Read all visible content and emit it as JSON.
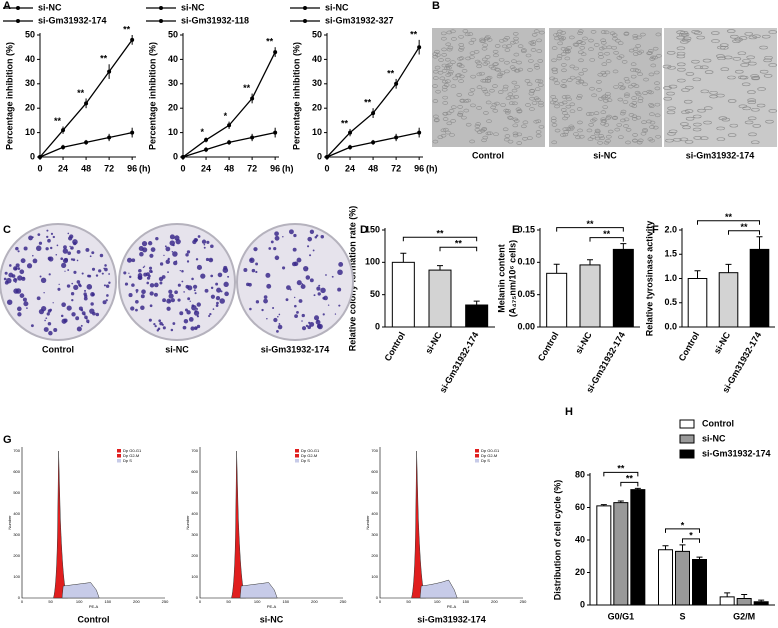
{
  "panel_labels": [
    "A",
    "B",
    "C",
    "D",
    "E",
    "F",
    "G",
    "H"
  ],
  "chart_data": [
    {
      "type": "line",
      "x": [
        0,
        24,
        48,
        72,
        96
      ],
      "xlim": [
        0,
        100
      ],
      "xticks": [
        0,
        24,
        48,
        72,
        96
      ],
      "xlabel": "(h)",
      "ylim": [
        0,
        50
      ],
      "yticks": [
        0,
        10,
        20,
        30,
        40,
        50
      ],
      "ylabel": "Percentage inhibition (%)",
      "series": [
        {
          "name": "si-NC",
          "color": "#000000",
          "values": [
            0,
            4,
            6,
            8,
            10
          ],
          "errors": [
            0,
            1,
            1,
            1.5,
            2
          ]
        },
        {
          "name": "si-Gm31932-174",
          "color": "#000000",
          "values": [
            0,
            11,
            22,
            35,
            48
          ],
          "errors": [
            0,
            1.5,
            2,
            3,
            2
          ]
        }
      ],
      "annotations": [
        null,
        "**",
        "**",
        "**",
        "**"
      ]
    },
    {
      "type": "line",
      "x": [
        0,
        24,
        48,
        72,
        96
      ],
      "xlim": [
        0,
        100
      ],
      "xticks": [
        0,
        24,
        48,
        72,
        96
      ],
      "xlabel": "(h)",
      "ylim": [
        0,
        50
      ],
      "yticks": [
        0,
        10,
        20,
        30,
        40,
        50
      ],
      "ylabel": "Percentage inhibition (%)",
      "series": [
        {
          "name": "si-NC",
          "color": "#000000",
          "values": [
            0,
            3,
            6,
            8,
            10
          ],
          "errors": [
            0,
            1,
            1,
            1.5,
            2
          ]
        },
        {
          "name": "si-Gm31932-118",
          "color": "#000000",
          "values": [
            0,
            7,
            13,
            24,
            43
          ],
          "errors": [
            0,
            1,
            1.5,
            2,
            2
          ]
        }
      ],
      "annotations": [
        null,
        "*",
        "*",
        "**",
        "**"
      ]
    },
    {
      "type": "line",
      "x": [
        0,
        24,
        48,
        72,
        96
      ],
      "xlim": [
        0,
        100
      ],
      "xticks": [
        0,
        24,
        48,
        72,
        96
      ],
      "xlabel": "(h)",
      "ylim": [
        0,
        50
      ],
      "yticks": [
        0,
        10,
        20,
        30,
        40,
        50
      ],
      "ylabel": "Percentage inhibition (%)",
      "series": [
        {
          "name": "si-NC",
          "color": "#000000",
          "values": [
            0,
            4,
            6,
            8,
            10
          ],
          "errors": [
            0,
            1,
            1,
            1.5,
            2
          ]
        },
        {
          "name": "si-Gm31932-327",
          "color": "#000000",
          "values": [
            0,
            10,
            18,
            30,
            45
          ],
          "errors": [
            0,
            1.5,
            2,
            2,
            3
          ]
        }
      ],
      "annotations": [
        null,
        "**",
        "**",
        "**",
        "**"
      ]
    },
    {
      "type": "bar",
      "categories": [
        "Control",
        "si-NC",
        "si-Gm31932-174"
      ],
      "values": [
        100,
        88,
        34
      ],
      "errors": [
        14,
        7,
        6
      ],
      "colors": [
        "#ffffff",
        "#d3d3d3",
        "#000000"
      ],
      "ylim": [
        0,
        150
      ],
      "yticks": [
        0,
        50,
        100,
        150
      ],
      "ylabel": "Relative colony formation rate (%)",
      "brackets": [
        {
          "pair": [
            0,
            2
          ],
          "label": "**"
        },
        {
          "pair": [
            1,
            2
          ],
          "label": "**"
        }
      ]
    },
    {
      "type": "bar",
      "categories": [
        "Control",
        "si-NC",
        "si-Gm31932-174"
      ],
      "values": [
        0.083,
        0.096,
        0.12
      ],
      "errors": [
        0.014,
        0.008,
        0.009
      ],
      "colors": [
        "#ffffff",
        "#d3d3d3",
        "#000000"
      ],
      "ylim": [
        0,
        0.15
      ],
      "yticks": [
        {
          "value": 0,
          "label": "0.00"
        },
        {
          "value": 0.05,
          "label": "0.05"
        },
        {
          "value": 0.1,
          "label": "0.10"
        },
        {
          "value": 0.15,
          "label": "0.15"
        }
      ],
      "ylabel": "Melanin content",
      "ylabel2": "(A₄₇₅nm/10⁶ cells)",
      "brackets": [
        {
          "pair": [
            0,
            2
          ],
          "label": "**"
        },
        {
          "pair": [
            1,
            2
          ],
          "label": "**"
        }
      ]
    },
    {
      "type": "bar",
      "categories": [
        "Control",
        "si-NC",
        "si-Gm31932-174"
      ],
      "values": [
        1.0,
        1.12,
        1.6
      ],
      "errors": [
        0.16,
        0.17,
        0.26
      ],
      "colors": [
        "#ffffff",
        "#d3d3d3",
        "#000000"
      ],
      "ylim": [
        0,
        2
      ],
      "yticks": [
        {
          "value": 0,
          "label": "0.0"
        },
        {
          "value": 0.5,
          "label": "0.5"
        },
        {
          "value": 1,
          "label": "1.0"
        },
        {
          "value": 1.5,
          "label": "1.5"
        },
        {
          "value": 2,
          "label": "2.0"
        }
      ],
      "ylabel": "Relative tyrosinase activity",
      "brackets": [
        {
          "pair": [
            0,
            2
          ],
          "label": "**"
        },
        {
          "pair": [
            1,
            2
          ],
          "label": "**"
        }
      ]
    },
    {
      "type": "bar",
      "categories": [
        "G0/G1",
        "S",
        "G2/M"
      ],
      "ylim": [
        0,
        80
      ],
      "yticks": [
        0,
        20,
        40,
        60,
        80
      ],
      "ylabel": "Distribution of cell cycle (%)",
      "series": [
        {
          "name": "Control",
          "color": "#ffffff",
          "values": [
            61,
            34,
            5
          ],
          "errors": [
            0.8,
            2.5,
            2.5
          ]
        },
        {
          "name": "si-NC",
          "color": "#999999",
          "values": [
            63,
            33,
            4
          ],
          "errors": [
            1,
            4,
            2.5
          ]
        },
        {
          "name": "si-Gm31932-174",
          "color": "#000000",
          "values": [
            71,
            28,
            2
          ],
          "errors": [
            0.8,
            1.5,
            1
          ]
        }
      ],
      "brackets": [
        {
          "category": 0,
          "pair": [
            0,
            2
          ],
          "label": "**"
        },
        {
          "category": 0,
          "pair": [
            1,
            2
          ],
          "label": "**"
        },
        {
          "category": 1,
          "pair": [
            0,
            2
          ],
          "label": "*"
        },
        {
          "category": 1,
          "pair": [
            1,
            2
          ],
          "label": "*"
        }
      ]
    }
  ],
  "images": {
    "B": {
      "labels": [
        "Control",
        "si-NC",
        "si-Gm31932-174"
      ]
    },
    "C": {
      "labels": [
        "Control",
        "si-NC",
        "si-Gm31932-174"
      ]
    },
    "G": {
      "labels": [
        "Control",
        "si-NC",
        "si-Gm31932-174"
      ],
      "legend": [
        "Dp G0-G1",
        "Dp G2-M",
        "Dp S"
      ],
      "xlabel": "PE-A",
      "ylabel": "Number",
      "xticks": [
        "0",
        "50",
        "100",
        "150",
        "200",
        "250"
      ],
      "yticks": [
        "0",
        "100",
        "200",
        "300",
        "400",
        "500",
        "600",
        "700"
      ]
    }
  }
}
